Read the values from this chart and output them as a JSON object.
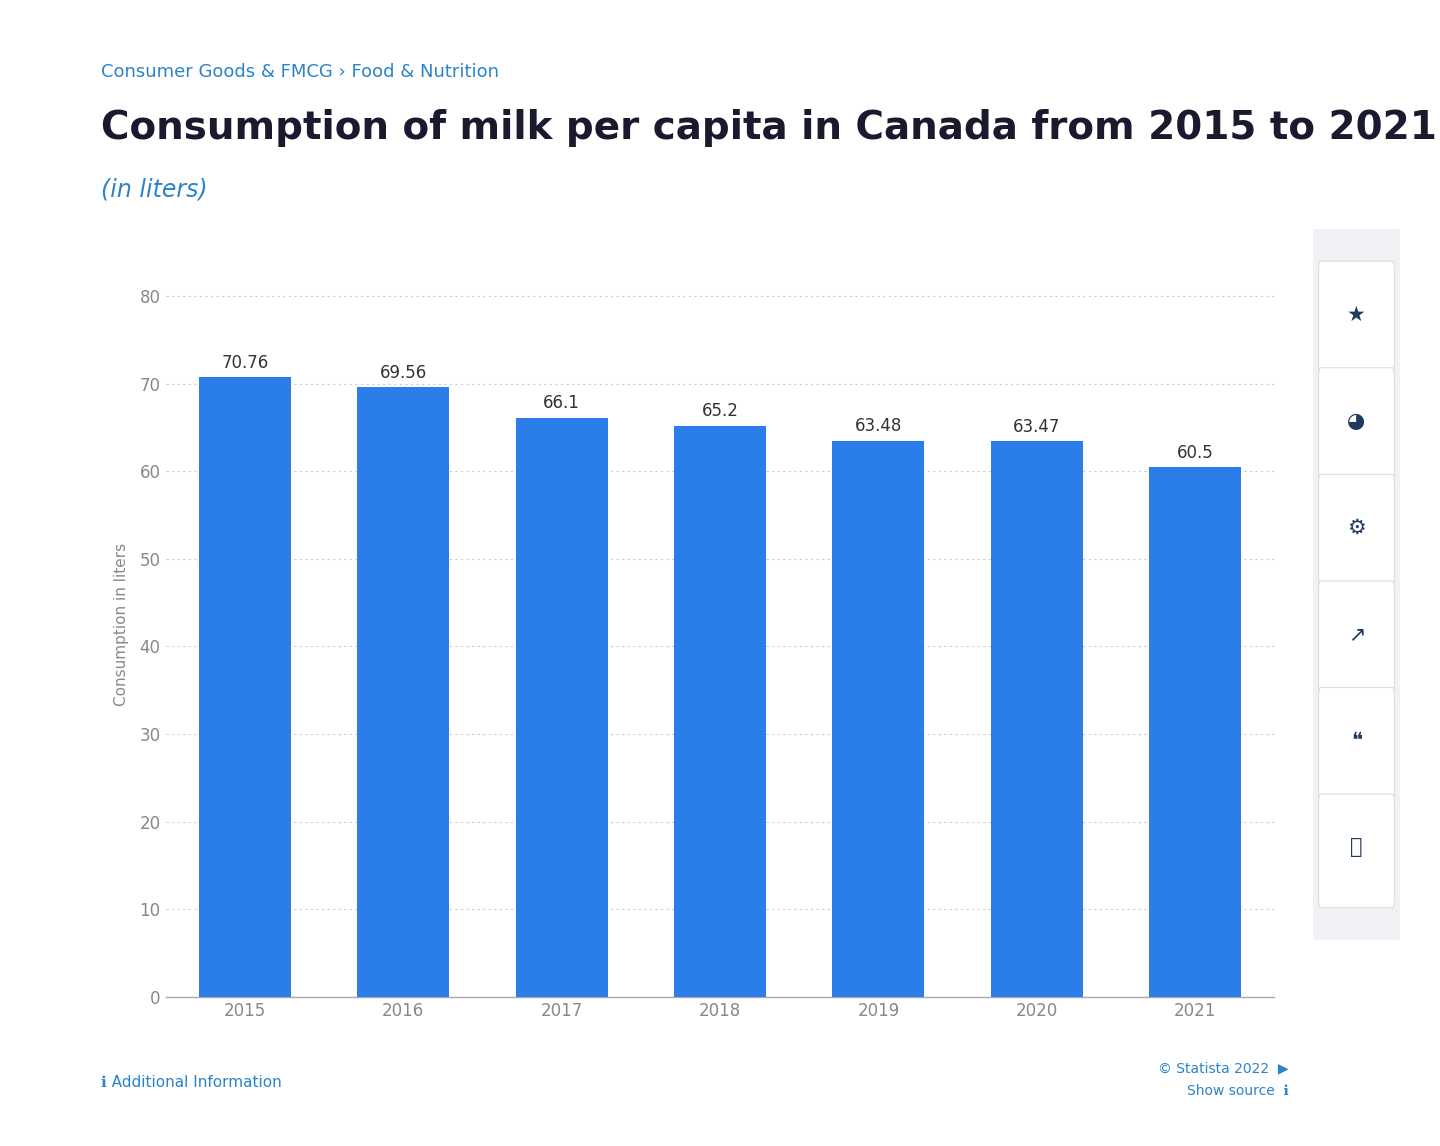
{
  "breadcrumb": "Consumer Goods & FMCG › Food & Nutrition",
  "title": "Consumption of milk per capita in Canada from 2015 to 2021",
  "subtitle": "(in liters)",
  "years": [
    "2015",
    "2016",
    "2017",
    "2018",
    "2019",
    "2020",
    "2021"
  ],
  "values": [
    70.76,
    69.56,
    66.1,
    65.2,
    63.48,
    63.47,
    60.5
  ],
  "bar_color": "#2b7de9",
  "ylabel": "Consumption in liters",
  "ylim": [
    0,
    85
  ],
  "yticks": [
    0,
    10,
    20,
    30,
    40,
    50,
    60,
    70,
    80
  ],
  "grid_color": "#cccccc",
  "background_color": "#ffffff",
  "chart_bg_color": "#ffffff",
  "breadcrumb_color": "#2b83ca",
  "title_color": "#1a1a2e",
  "subtitle_color": "#2b83ca",
  "ylabel_color": "#888888",
  "tick_color": "#888888",
  "value_label_color": "#333333",
  "footer_statista": "© Statista 2022",
  "footer_source": "Show source",
  "footer_info": "Additional Information",
  "value_fontsize": 12,
  "ylabel_fontsize": 11,
  "tick_fontsize": 12,
  "title_fontsize": 28,
  "subtitle_fontsize": 17,
  "breadcrumb_fontsize": 13,
  "icon_color": "#1e3a5f"
}
